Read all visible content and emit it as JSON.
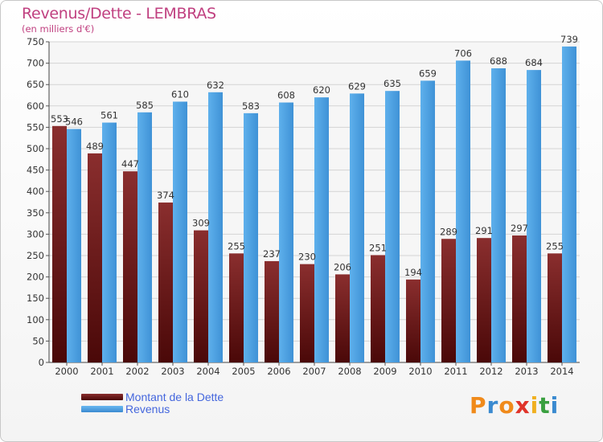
{
  "colors": {
    "dette": "#6b1a1a",
    "revenus": "#4a9de0",
    "title": "#c04080",
    "legend_text": "#4466dd"
  },
  "brand": {
    "letters": [
      "P",
      "r",
      "o",
      "x",
      "i",
      "t",
      "i"
    ],
    "letter_colors": [
      "#f08a1a",
      "#3a8ad0",
      "#f08a1a",
      "#e0342a",
      "#f0b020",
      "#3aa040",
      "#3a8ad0"
    ]
  },
  "chart_data": {
    "type": "bar",
    "title": "Revenus/Dette - LEMBRAS",
    "subtitle": "(en milliers d'€)",
    "xlabel": "",
    "ylabel": "",
    "ylim": [
      0,
      750
    ],
    "ytick_step": 50,
    "grid": true,
    "legend_position": "bottom-left",
    "categories": [
      "2000",
      "2001",
      "2002",
      "2003",
      "2004",
      "2005",
      "2006",
      "2007",
      "2008",
      "2009",
      "2010",
      "2011",
      "2012",
      "2013",
      "2014"
    ],
    "series": [
      {
        "name": "Montant de la Dette",
        "values": [
          553,
          489,
          447,
          374,
          309,
          255,
          237,
          230,
          206,
          251,
          194,
          289,
          291,
          297,
          255
        ]
      },
      {
        "name": "Revenus",
        "values": [
          546,
          561,
          585,
          610,
          632,
          583,
          608,
          620,
          629,
          635,
          659,
          706,
          688,
          684,
          739
        ]
      }
    ]
  }
}
